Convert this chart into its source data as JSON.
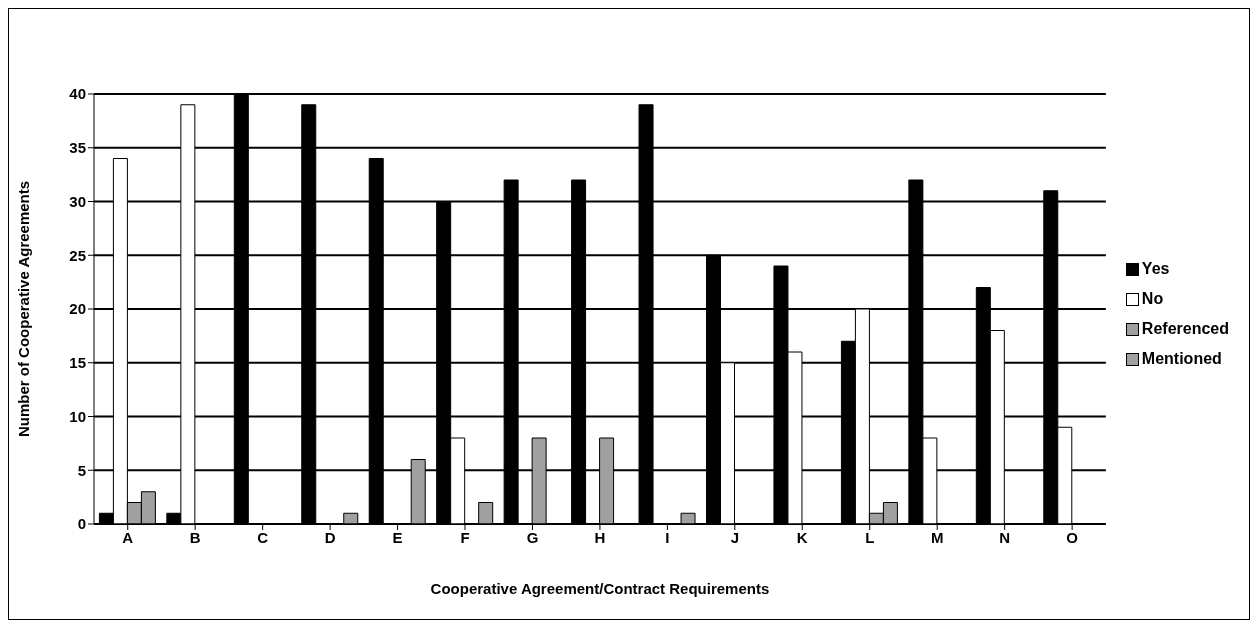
{
  "chart_data": {
    "type": "bar",
    "xlabel": "Cooperative Agreement/Contract Requirements",
    "ylabel": "Number of Cooperative Agreements",
    "categories": [
      "A",
      "B",
      "C",
      "D",
      "E",
      "F",
      "G",
      "H",
      "I",
      "J",
      "K",
      "L",
      "M",
      "N",
      "O"
    ],
    "series": [
      {
        "name": "Yes",
        "color": "#000000",
        "values": [
          1,
          1,
          40,
          39,
          34,
          30,
          32,
          32,
          39,
          25,
          24,
          17,
          32,
          22,
          31
        ]
      },
      {
        "name": "No",
        "color": "#ffffff",
        "values": [
          34,
          39,
          0,
          0,
          0,
          8,
          0,
          0,
          0,
          15,
          16,
          20,
          8,
          18,
          9
        ]
      },
      {
        "name": "Referenced",
        "color": "#a0a0a0",
        "values": [
          2,
          0,
          0,
          0,
          0,
          0,
          8,
          8,
          0,
          0,
          0,
          1,
          0,
          0,
          0
        ]
      },
      {
        "name": "Mentioned",
        "color": "#a0a0a0",
        "values": [
          3,
          0,
          0,
          1,
          6,
          2,
          0,
          0,
          1,
          0,
          0,
          2,
          0,
          0,
          0
        ]
      }
    ],
    "ylim": [
      0,
      40
    ],
    "yticks": [
      0,
      5,
      10,
      15,
      20,
      25,
      30,
      35,
      40
    ],
    "grid": "y",
    "legend": "right"
  }
}
